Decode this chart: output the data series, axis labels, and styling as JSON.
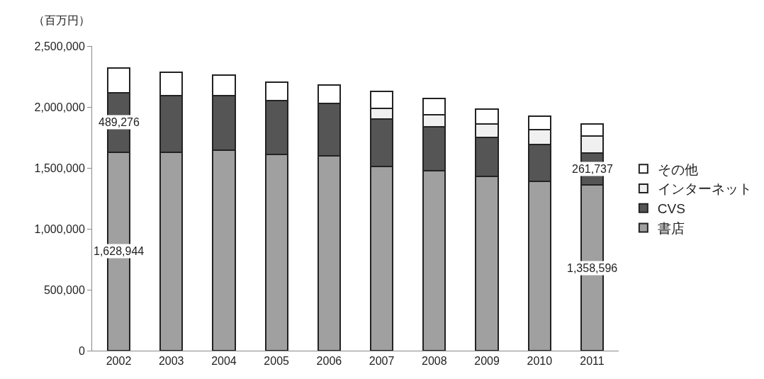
{
  "chart_data": {
    "type": "bar",
    "stacked": true,
    "ylabel": "（百万円）",
    "categories": [
      "2002",
      "2003",
      "2004",
      "2005",
      "2006",
      "2007",
      "2008",
      "2009",
      "2010",
      "2011"
    ],
    "series": [
      {
        "name": "書店",
        "color": "#a0a0a0",
        "values": [
          1628944,
          1630000,
          1645000,
          1610000,
          1600000,
          1510000,
          1475000,
          1430000,
          1390000,
          1358596
        ],
        "value_labels": [
          "1,628,944",
          null,
          null,
          null,
          null,
          null,
          null,
          null,
          null,
          "1,358,596"
        ]
      },
      {
        "name": "CVS",
        "color": "#555555",
        "values": [
          489276,
          465000,
          450000,
          440000,
          430000,
          390000,
          360000,
          320000,
          300000,
          261737
        ],
        "value_labels": [
          "489,276",
          null,
          null,
          null,
          null,
          null,
          null,
          null,
          null,
          "261,737"
        ]
      },
      {
        "name": "インターネット",
        "color": "#f0f0f0",
        "values": [
          0,
          0,
          0,
          0,
          0,
          90000,
          100000,
          110000,
          125000,
          140000
        ]
      },
      {
        "name": "その他",
        "color": "#ffffff",
        "values": [
          200000,
          190000,
          165000,
          155000,
          150000,
          140000,
          135000,
          120000,
          110000,
          100000
        ]
      }
    ],
    "ylim": [
      0,
      2500000
    ],
    "yticks": [
      {
        "value": 0,
        "label": "0"
      },
      {
        "value": 500000,
        "label": "500,000"
      },
      {
        "value": 1000000,
        "label": "1,000,000"
      },
      {
        "value": 1500000,
        "label": "1,500,000"
      },
      {
        "value": 2000000,
        "label": "2,000,000"
      },
      {
        "value": 2500000,
        "label": "2,500,000"
      }
    ],
    "grid": false,
    "legend": "right"
  }
}
